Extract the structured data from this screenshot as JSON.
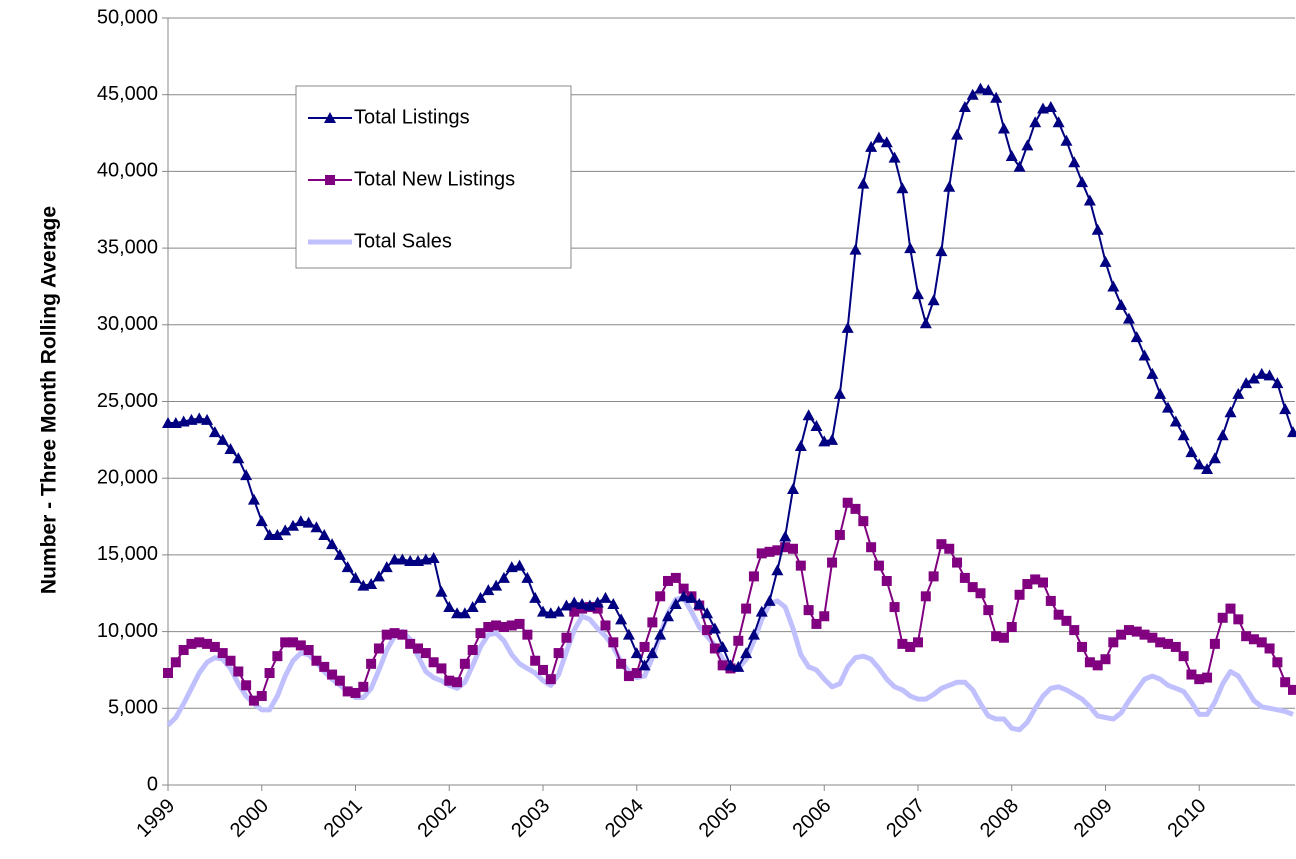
{
  "chart_data": {
    "type": "line",
    "y_label": "Number  - Three Month Rolling Average",
    "categories": [
      "1999",
      null,
      null,
      null,
      null,
      null,
      null,
      null,
      null,
      null,
      null,
      null,
      "2000",
      null,
      null,
      null,
      null,
      null,
      null,
      null,
      null,
      null,
      null,
      null,
      "2001",
      null,
      null,
      null,
      null,
      null,
      null,
      null,
      null,
      null,
      null,
      null,
      "2002",
      null,
      null,
      null,
      null,
      null,
      null,
      null,
      null,
      null,
      null,
      null,
      "2003",
      null,
      null,
      null,
      null,
      null,
      null,
      null,
      null,
      null,
      null,
      null,
      "2004",
      null,
      null,
      null,
      null,
      null,
      null,
      null,
      null,
      null,
      null,
      null,
      "2005",
      null,
      null,
      null,
      null,
      null,
      null,
      null,
      null,
      null,
      null,
      null,
      "2006",
      null,
      null,
      null,
      null,
      null,
      null,
      null,
      null,
      null,
      null,
      null,
      "2007",
      null,
      null,
      null,
      null,
      null,
      null,
      null,
      null,
      null,
      null,
      null,
      "2008",
      null,
      null,
      null,
      null,
      null,
      null,
      null,
      null,
      null,
      null,
      null,
      "2009",
      null,
      null,
      null,
      null,
      null,
      null,
      null,
      null,
      null,
      null,
      null,
      "2010",
      null,
      null,
      null,
      null,
      null,
      null,
      null,
      null,
      null,
      null,
      null,
      null
    ],
    "series": [
      {
        "name": "Total Listings",
        "color": "#000080",
        "marker": "triangle",
        "values": [
          23600,
          23600,
          23700,
          23800,
          23900,
          23800,
          23000,
          22500,
          21900,
          21300,
          20200,
          18600,
          17200,
          16300,
          16300,
          16600,
          16900,
          17200,
          17100,
          16800,
          16300,
          15700,
          15000,
          14200,
          13500,
          13000,
          13100,
          13600,
          14200,
          14700,
          14700,
          14600,
          14600,
          14700,
          14800,
          12600,
          11600,
          11200,
          11200,
          11600,
          12200,
          12700,
          13000,
          13500,
          14200,
          14300,
          13500,
          12200,
          11300,
          11200,
          11300,
          11700,
          11900,
          11800,
          11700,
          11900,
          12200,
          11800,
          10800,
          9800,
          8600,
          7800,
          8600,
          9800,
          11000,
          11800,
          12300,
          12200,
          11800,
          11200,
          10200,
          9000,
          7800,
          7700,
          8600,
          9800,
          11300,
          12000,
          14000,
          16200,
          19300,
          22100,
          24100,
          23400,
          22400,
          22500,
          25500,
          29800,
          34900,
          39200,
          41600,
          42200,
          41900,
          40900,
          38900,
          35000,
          32000,
          30100,
          31600,
          34800,
          39000,
          42400,
          44200,
          45000,
          45400,
          45300,
          44800,
          42800,
          41000,
          40300,
          41700,
          43200,
          44100,
          44200,
          43200,
          42000,
          40600,
          39300,
          38100,
          36200,
          34100,
          32500,
          31300,
          30400,
          29200,
          28000,
          26800,
          25500,
          24600,
          23700,
          22800,
          21700,
          20900,
          20600,
          21300,
          22800,
          24300,
          25500,
          26200,
          26500,
          26800,
          26700,
          26200,
          24500,
          23000
        ]
      },
      {
        "name": "Total New Listings",
        "color": "#800080",
        "marker": "square",
        "values": [
          7300,
          8000,
          8800,
          9200,
          9300,
          9200,
          9000,
          8600,
          8100,
          7400,
          6500,
          5500,
          5800,
          7300,
          8400,
          9300,
          9300,
          9100,
          8800,
          8100,
          7700,
          7200,
          6800,
          6100,
          6000,
          6400,
          7900,
          8900,
          9800,
          9900,
          9800,
          9200,
          8900,
          8600,
          8000,
          7600,
          6800,
          6700,
          7900,
          8800,
          9900,
          10300,
          10400,
          10300,
          10400,
          10500,
          9800,
          8100,
          7500,
          6900,
          8600,
          9600,
          11300,
          11500,
          11600,
          11500,
          10400,
          9300,
          7900,
          7100,
          7300,
          9000,
          10600,
          12300,
          13300,
          13500,
          12800,
          12300,
          11700,
          10100,
          8900,
          7800,
          7600,
          9400,
          11500,
          13600,
          15100,
          15200,
          15300,
          15500,
          15400,
          14300,
          11400,
          10500,
          11000,
          14500,
          16300,
          18400,
          18000,
          17200,
          15500,
          14300,
          13300,
          11600,
          9200,
          9000,
          9300,
          12300,
          13600,
          15700,
          15400,
          14500,
          13500,
          12900,
          12500,
          11400,
          9700,
          9600,
          10300,
          12400,
          13100,
          13400,
          13200,
          12000,
          11100,
          10700,
          10100,
          9000,
          8000,
          7800,
          8200,
          9300,
          9800,
          10100,
          10000,
          9800,
          9600,
          9300,
          9200,
          9000,
          8400,
          7200,
          6900,
          7000,
          9200,
          10900,
          11500,
          10800,
          9700,
          9500,
          9300,
          8900,
          8000,
          6700,
          6200
        ]
      },
      {
        "name": "Total Sales",
        "color": "#c0c0ff",
        "marker": "none",
        "values": [
          3900,
          4400,
          5300,
          6300,
          7300,
          8000,
          8300,
          8200,
          7600,
          6600,
          5800,
          5300,
          4900,
          4900,
          5800,
          7100,
          8100,
          8600,
          8500,
          8000,
          7400,
          6900,
          6500,
          6100,
          5700,
          5700,
          6300,
          7500,
          8800,
          9700,
          10000,
          9500,
          8400,
          7400,
          7000,
          6800,
          6500,
          6300,
          6700,
          7800,
          9000,
          9800,
          9900,
          9400,
          8500,
          7900,
          7600,
          7300,
          6800,
          6500,
          7200,
          8700,
          10100,
          11000,
          10800,
          10200,
          9700,
          9000,
          8000,
          7400,
          7000,
          7100,
          8300,
          9800,
          11200,
          12100,
          12200,
          11300,
          10300,
          9700,
          9100,
          8200,
          7700,
          7600,
          8200,
          9400,
          10800,
          11800,
          12000,
          11600,
          10200,
          8500,
          7700,
          7500,
          6900,
          6400,
          6600,
          7700,
          8300,
          8400,
          8200,
          7600,
          6900,
          6400,
          6200,
          5800,
          5600,
          5600,
          5900,
          6300,
          6500,
          6700,
          6700,
          6200,
          5300,
          4500,
          4300,
          4300,
          3700,
          3600,
          4100,
          5000,
          5800,
          6300,
          6400,
          6200,
          5900,
          5600,
          5100,
          4500,
          4400,
          4300,
          4700,
          5500,
          6200,
          6900,
          7100,
          6900,
          6500,
          6300,
          6100,
          5400,
          4600,
          4600,
          5400,
          6600,
          7400,
          7100,
          6300,
          5500,
          5100,
          5000,
          4900,
          4800,
          4600
        ]
      }
    ],
    "ylim": [
      0,
      50000
    ],
    "yticks": [
      0,
      {
        "value": 5000,
        "label": "5,000"
      },
      {
        "value": 10000,
        "label": "10,000"
      },
      {
        "value": 15000,
        "label": "15,000"
      },
      {
        "value": 20000,
        "label": "20,000"
      },
      {
        "value": 25000,
        "label": "25,000"
      },
      {
        "value": 30000,
        "label": "30,000"
      },
      {
        "value": 35000,
        "label": "35,000"
      },
      {
        "value": 40000,
        "label": "40,000"
      },
      {
        "value": 45000,
        "label": "45,000"
      },
      {
        "value": 50000,
        "label": "50,000"
      }
    ],
    "grid": true,
    "legend": "upper left"
  }
}
